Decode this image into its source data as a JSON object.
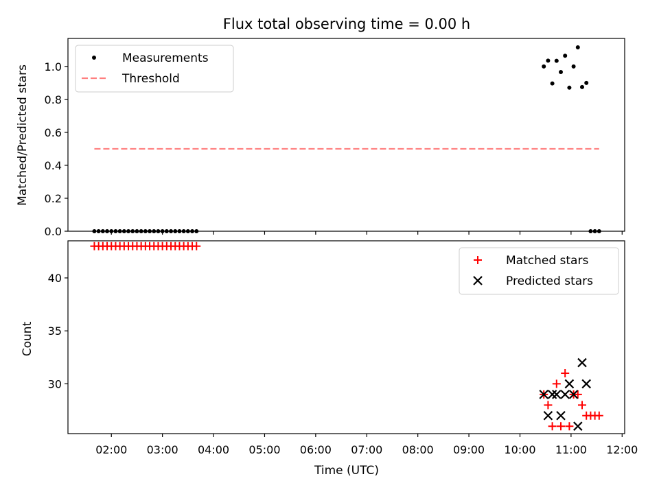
{
  "chart_data": [
    {
      "type": "scatter",
      "title": "Flux total observing time = 0.00 h",
      "xlabel": "",
      "ylabel": "Matched/Predicted stars",
      "xlim": [
        "01:09",
        "12:03"
      ],
      "ylim": [
        0,
        1.17
      ],
      "yticks": [
        "0.0",
        "0.2",
        "0.4",
        "0.6",
        "0.8",
        "1.0"
      ],
      "legend_position": "upper-left",
      "series": [
        {
          "name": "Measurements",
          "marker": "dot",
          "color": "#000000",
          "points": [
            [
              "01:40",
              0
            ],
            [
              "01:45",
              0
            ],
            [
              "01:50",
              0
            ],
            [
              "01:55",
              0
            ],
            [
              "02:00",
              0
            ],
            [
              "02:05",
              0
            ],
            [
              "02:10",
              0
            ],
            [
              "02:15",
              0
            ],
            [
              "02:20",
              0
            ],
            [
              "02:25",
              0
            ],
            [
              "02:30",
              0
            ],
            [
              "02:35",
              0
            ],
            [
              "02:40",
              0
            ],
            [
              "02:45",
              0
            ],
            [
              "02:50",
              0
            ],
            [
              "02:55",
              0
            ],
            [
              "03:00",
              0
            ],
            [
              "03:05",
              0
            ],
            [
              "03:10",
              0
            ],
            [
              "03:15",
              0
            ],
            [
              "03:20",
              0
            ],
            [
              "03:25",
              0
            ],
            [
              "03:30",
              0
            ],
            [
              "03:35",
              0
            ],
            [
              "03:40",
              0
            ],
            [
              "10:28",
              1.0
            ],
            [
              "10:33",
              1.035
            ],
            [
              "10:38",
              0.897
            ],
            [
              "10:43",
              1.034
            ],
            [
              "10:48",
              0.966
            ],
            [
              "10:53",
              1.065
            ],
            [
              "10:58",
              0.871
            ],
            [
              "11:03",
              1.0
            ],
            [
              "11:08",
              1.116
            ],
            [
              "11:13",
              0.875
            ],
            [
              "11:18",
              0.9
            ],
            [
              "11:23",
              0
            ],
            [
              "11:28",
              0
            ],
            [
              "11:33",
              0
            ]
          ]
        },
        {
          "name": "Threshold",
          "style": "dashed-line",
          "color": "#ff7f7f",
          "points": [
            [
              "01:40",
              0.5
            ],
            [
              "11:33",
              0.5
            ]
          ]
        }
      ]
    },
    {
      "type": "scatter",
      "title": "",
      "xlabel": "Time (UTC)",
      "ylabel": "Count",
      "xlim": [
        "01:09",
        "12:03"
      ],
      "ylim": [
        25.3,
        43.5
      ],
      "yticks": [
        "30",
        "35",
        "40"
      ],
      "xticks": [
        "02:00",
        "03:00",
        "04:00",
        "05:00",
        "06:00",
        "07:00",
        "08:00",
        "09:00",
        "10:00",
        "11:00",
        "12:00"
      ],
      "legend_position": "upper-right",
      "series": [
        {
          "name": "Matched stars",
          "marker": "plus",
          "color": "#ff0000",
          "points": [
            [
              "01:40",
              43
            ],
            [
              "01:45",
              43
            ],
            [
              "01:50",
              43
            ],
            [
              "01:55",
              43
            ],
            [
              "02:00",
              43
            ],
            [
              "02:05",
              43
            ],
            [
              "02:10",
              43
            ],
            [
              "02:15",
              43
            ],
            [
              "02:20",
              43
            ],
            [
              "02:25",
              43
            ],
            [
              "02:30",
              43
            ],
            [
              "02:35",
              43
            ],
            [
              "02:40",
              43
            ],
            [
              "02:45",
              43
            ],
            [
              "02:50",
              43
            ],
            [
              "02:55",
              43
            ],
            [
              "03:00",
              43
            ],
            [
              "03:05",
              43
            ],
            [
              "03:10",
              43
            ],
            [
              "03:15",
              43
            ],
            [
              "03:20",
              43
            ],
            [
              "03:25",
              43
            ],
            [
              "03:30",
              43
            ],
            [
              "03:35",
              43
            ],
            [
              "03:40",
              43
            ],
            [
              "10:28",
              29
            ],
            [
              "10:33",
              28
            ],
            [
              "10:38",
              26
            ],
            [
              "10:43",
              30
            ],
            [
              "10:48",
              26
            ],
            [
              "10:53",
              31
            ],
            [
              "10:58",
              26
            ],
            [
              "11:03",
              29
            ],
            [
              "11:08",
              29
            ],
            [
              "11:13",
              28
            ],
            [
              "11:18",
              27
            ],
            [
              "11:23",
              27
            ],
            [
              "11:28",
              27
            ],
            [
              "11:33",
              27
            ]
          ]
        },
        {
          "name": "Predicted stars",
          "marker": "x",
          "color": "#000000",
          "points": [
            [
              "10:28",
              29
            ],
            [
              "10:33",
              27
            ],
            [
              "10:38",
              29
            ],
            [
              "10:43",
              29
            ],
            [
              "10:48",
              27
            ],
            [
              "10:53",
              29
            ],
            [
              "10:58",
              30
            ],
            [
              "11:03",
              29
            ],
            [
              "11:08",
              26
            ],
            [
              "11:13",
              32
            ],
            [
              "11:18",
              30
            ]
          ]
        }
      ]
    }
  ]
}
